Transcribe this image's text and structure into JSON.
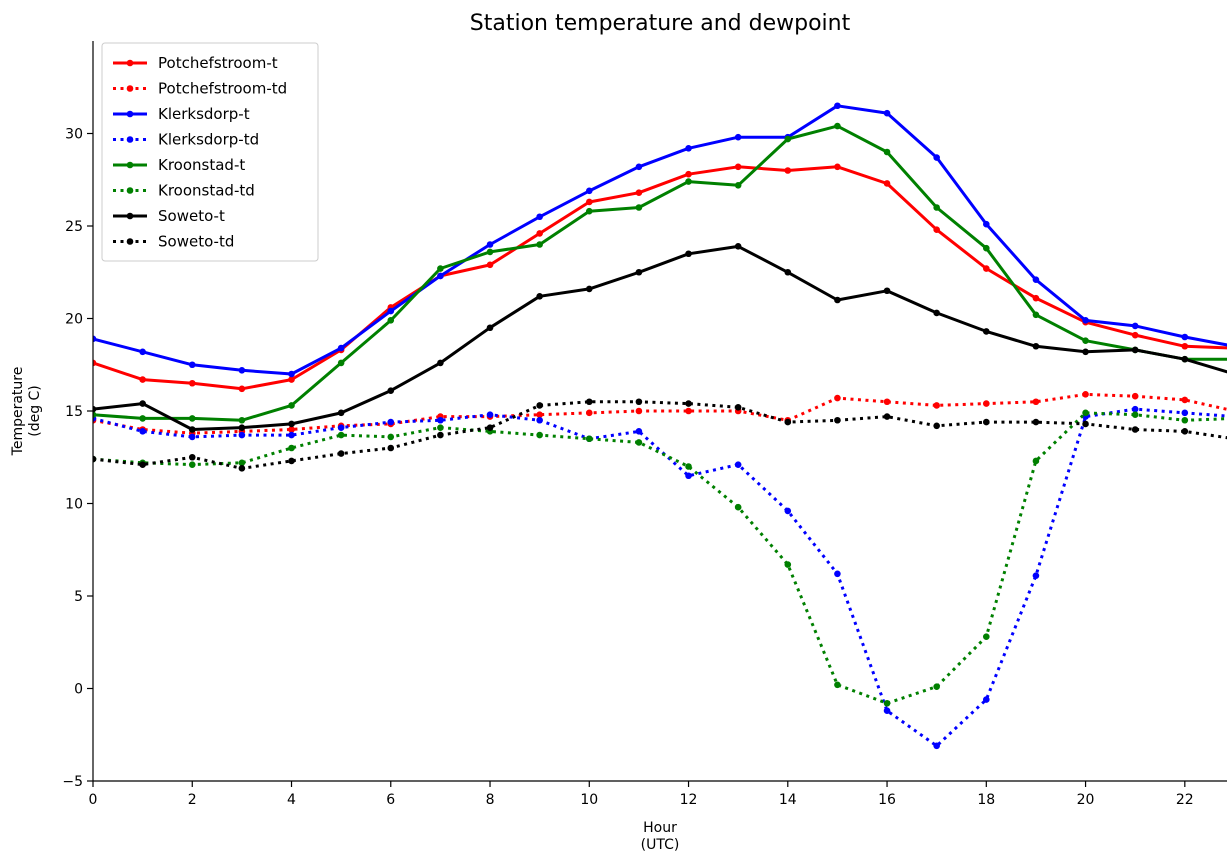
{
  "chart_data": {
    "type": "line",
    "title": "Station temperature and dewpoint",
    "xlabel": [
      "Hour",
      "(UTC)"
    ],
    "ylabel": [
      "Temperature",
      "(deg C)"
    ],
    "xlim": [
      0,
      22.85
    ],
    "ylim": [
      -5,
      35
    ],
    "x_ticks": [
      0,
      2,
      4,
      6,
      8,
      10,
      12,
      14,
      16,
      18,
      20,
      22
    ],
    "y_ticks": [
      -5,
      0,
      5,
      10,
      15,
      20,
      25,
      30
    ],
    "grid": false,
    "legend_position": "top-left",
    "x": [
      0,
      1,
      2,
      3,
      4,
      5,
      6,
      7,
      8,
      9,
      10,
      11,
      12,
      13,
      14,
      15,
      16,
      17,
      18,
      19,
      20,
      21,
      22,
      23
    ],
    "series": [
      {
        "name": "Potchefstroom-t",
        "color": "#ff0000",
        "style": "solid",
        "values": [
          17.6,
          16.7,
          16.5,
          16.2,
          16.7,
          18.3,
          20.6,
          22.3,
          22.9,
          24.6,
          26.3,
          26.8,
          27.8,
          28.2,
          28.0,
          28.2,
          27.3,
          24.8,
          22.7,
          21.1,
          19.8,
          19.1,
          18.5,
          18.4
        ]
      },
      {
        "name": "Potchefstroom-td",
        "color": "#ff0000",
        "style": "dotted",
        "values": [
          14.5,
          14.0,
          13.8,
          13.9,
          14.0,
          14.2,
          14.3,
          14.7,
          14.7,
          14.8,
          14.9,
          15.0,
          15.0,
          15.0,
          14.5,
          15.7,
          15.5,
          15.3,
          15.4,
          15.5,
          15.9,
          15.8,
          15.6,
          15.0
        ]
      },
      {
        "name": "Klerksdorp-t",
        "color": "#0000ff",
        "style": "solid",
        "values": [
          18.9,
          18.2,
          17.5,
          17.2,
          17.0,
          18.4,
          20.4,
          22.3,
          24.0,
          25.5,
          26.9,
          28.2,
          29.2,
          29.8,
          29.8,
          31.5,
          31.1,
          28.7,
          25.1,
          22.1,
          19.9,
          19.6,
          19.0,
          18.5
        ]
      },
      {
        "name": "Klerksdorp-td",
        "color": "#0000ff",
        "style": "dotted",
        "values": [
          14.6,
          13.9,
          13.6,
          13.7,
          13.7,
          14.1,
          14.4,
          14.5,
          14.8,
          14.5,
          13.5,
          13.9,
          11.5,
          12.1,
          9.6,
          6.2,
          -1.2,
          -3.1,
          -0.6,
          6.1,
          14.7,
          15.1,
          14.9,
          14.7
        ]
      },
      {
        "name": "Kroonstad-t",
        "color": "#008000",
        "style": "solid",
        "values": [
          14.8,
          14.6,
          14.6,
          14.5,
          15.3,
          17.6,
          19.9,
          22.7,
          23.6,
          24.0,
          25.8,
          26.0,
          27.4,
          27.2,
          29.7,
          30.4,
          29.0,
          26.0,
          23.8,
          20.2,
          18.8,
          18.3,
          17.8,
          17.8
        ]
      },
      {
        "name": "Kroonstad-td",
        "color": "#008000",
        "style": "dotted",
        "values": [
          12.4,
          12.2,
          12.1,
          12.2,
          13.0,
          13.7,
          13.6,
          14.1,
          13.9,
          13.7,
          13.5,
          13.3,
          12.0,
          9.8,
          6.7,
          0.2,
          -0.8,
          0.1,
          2.8,
          12.3,
          14.9,
          14.8,
          14.5,
          14.6
        ]
      },
      {
        "name": "Soweto-t",
        "color": "#000000",
        "style": "solid",
        "values": [
          15.1,
          15.4,
          14.0,
          14.1,
          14.3,
          14.9,
          16.1,
          17.6,
          19.5,
          21.2,
          21.6,
          22.5,
          23.5,
          23.9,
          22.5,
          21.0,
          21.5,
          20.3,
          19.3,
          18.5,
          18.2,
          18.3,
          17.8,
          17.0
        ]
      },
      {
        "name": "Soweto-td",
        "color": "#000000",
        "style": "dotted",
        "values": [
          12.4,
          12.1,
          12.5,
          11.9,
          12.3,
          12.7,
          13.0,
          13.7,
          14.1,
          15.3,
          15.5,
          15.5,
          15.4,
          15.2,
          14.4,
          14.5,
          14.7,
          14.2,
          14.4,
          14.4,
          14.3,
          14.0,
          13.9,
          13.5
        ]
      }
    ]
  }
}
